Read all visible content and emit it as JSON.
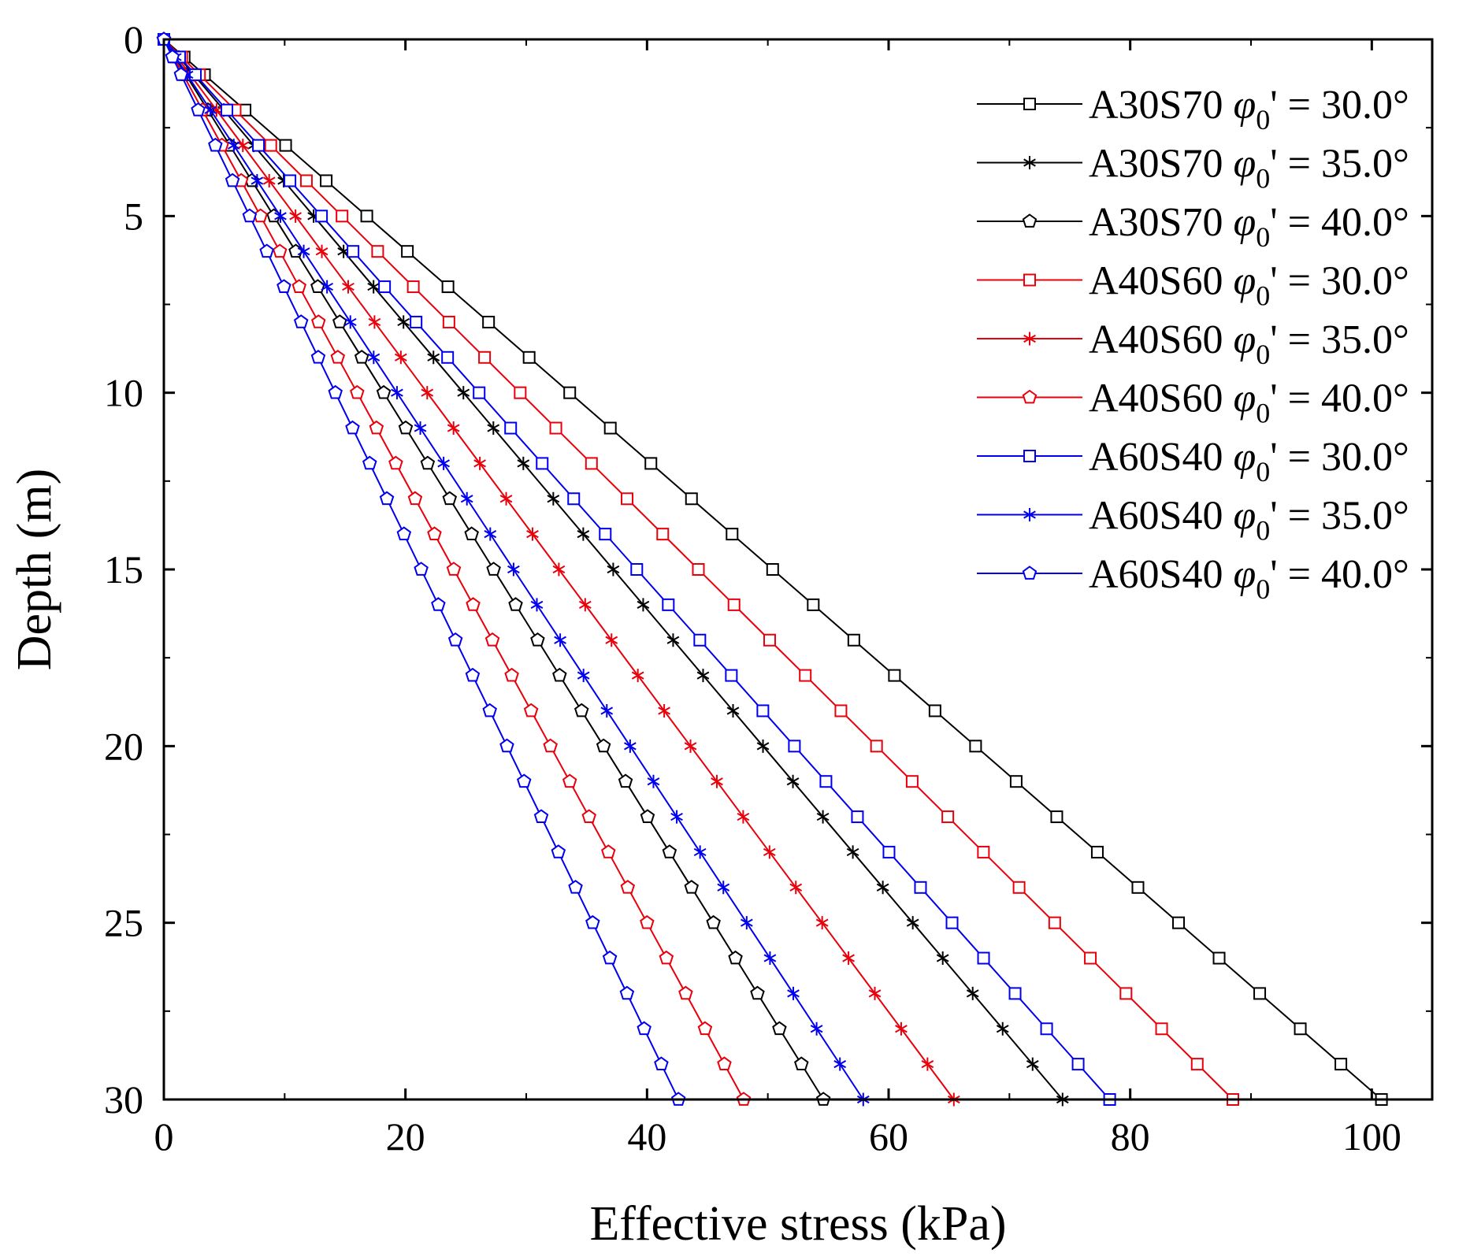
{
  "chart_data": {
    "type": "line",
    "title": "",
    "xlabel": "Effective stress (kPa)",
    "ylabel": "Depth (m)",
    "xlim": [
      0,
      105
    ],
    "ylim": [
      0,
      30
    ],
    "y_inverted": true,
    "x_ticks": [
      0,
      20,
      40,
      60,
      80,
      100
    ],
    "x_tick_labels": [
      "0",
      "20",
      "40",
      "60",
      "80",
      "100"
    ],
    "y_ticks": [
      0,
      5,
      10,
      15,
      20,
      25,
      30
    ],
    "y_tick_labels": [
      "0",
      "5",
      "10",
      "15",
      "20",
      "25",
      "30"
    ],
    "grid": false,
    "legend_position": "top-right",
    "depth": [
      0,
      0.5,
      1,
      2,
      3,
      4,
      5,
      6,
      7,
      8,
      9,
      10,
      11,
      12,
      13,
      14,
      15,
      16,
      17,
      18,
      19,
      20,
      21,
      22,
      23,
      24,
      25,
      26,
      27,
      28,
      29,
      30
    ],
    "series": [
      {
        "name": "A30S70",
        "phi_symbol": "φ",
        "phi_subscript": "0",
        "phi_label": "' = 30.0°",
        "color": "#000000",
        "marker": "square",
        "gradient": 3.36
      },
      {
        "name": "A30S70",
        "phi_symbol": "φ",
        "phi_subscript": "0",
        "phi_label": "' = 35.0°",
        "color": "#000000",
        "marker": "asterisk",
        "gradient": 2.48
      },
      {
        "name": "A30S70",
        "phi_symbol": "φ",
        "phi_subscript": "0",
        "phi_label": "' = 40.0°",
        "color": "#000000",
        "marker": "pentagon",
        "gradient": 1.82
      },
      {
        "name": "A40S60",
        "phi_symbol": "φ",
        "phi_subscript": "0",
        "phi_label": "' = 30.0°",
        "color": "#e8000b",
        "marker": "square",
        "gradient": 2.95
      },
      {
        "name": "A40S60",
        "phi_symbol": "φ",
        "phi_subscript": "0",
        "phi_label": "' = 35.0°",
        "color": "#e8000b",
        "marker": "asterisk",
        "gradient": 2.18
      },
      {
        "name": "A40S60",
        "phi_symbol": "φ",
        "phi_subscript": "0",
        "phi_label": "' = 40.0°",
        "color": "#e8000b",
        "marker": "pentagon",
        "gradient": 1.6
      },
      {
        "name": "A60S40",
        "phi_symbol": "φ",
        "phi_subscript": "0",
        "phi_label": "' = 30.0°",
        "color": "#0000ee",
        "marker": "square",
        "gradient": 2.61
      },
      {
        "name": "A60S40",
        "phi_symbol": "φ",
        "phi_subscript": "0",
        "phi_label": "' = 35.0°",
        "color": "#0000ee",
        "marker": "asterisk",
        "gradient": 1.93
      },
      {
        "name": "A60S40",
        "phi_symbol": "φ",
        "phi_subscript": "0",
        "phi_label": "' = 40.0°",
        "color": "#0000ee",
        "marker": "pentagon",
        "gradient": 1.42
      }
    ]
  }
}
